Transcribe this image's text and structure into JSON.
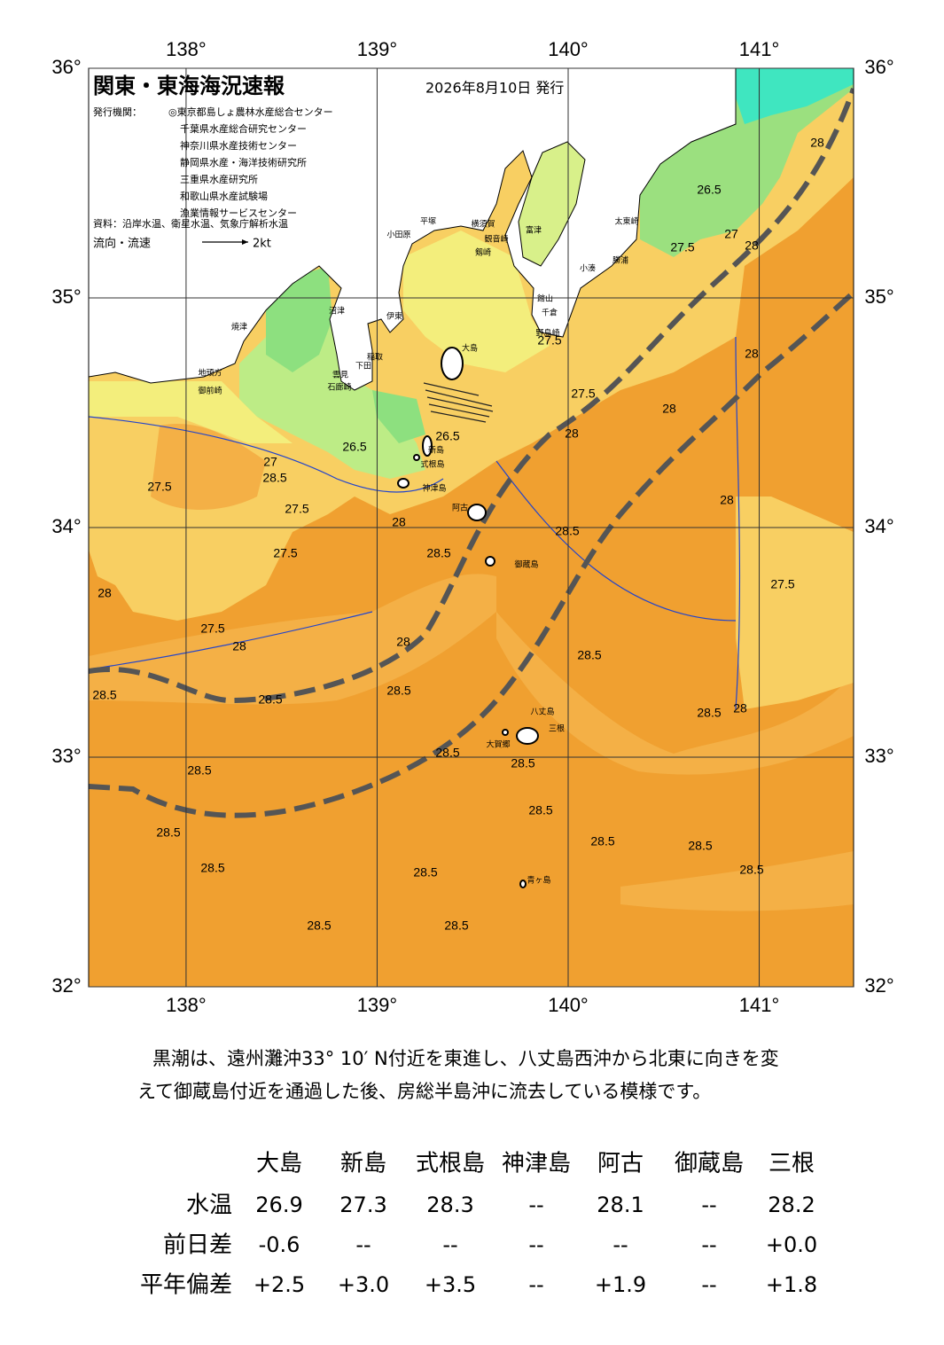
{
  "header": {
    "title": "関東・東海海況速報",
    "issue_date": "2026年8月10日 発行",
    "publisher_label": "発行機関：",
    "publishers": [
      "◎東京都島しょ農林水産総合センター",
      "千葉県水産総合研究センター",
      "神奈川県水産技術センター",
      "静岡県水産・海洋技術研究所",
      "三重県水産研究所",
      "和歌山県水産試験場",
      "漁業情報サービスセンター"
    ],
    "source": "資料：沿岸水温、衛星水温、気象庁解析水温",
    "flow_legend": "流向・流速",
    "flow_scale": "2kt"
  },
  "map": {
    "lonlim": [
      137.49,
      141.494
    ],
    "latlim": [
      32,
      36
    ],
    "lon_ticks": [
      {
        "value": 138,
        "label": "138°"
      },
      {
        "value": 139,
        "label": "139°"
      },
      {
        "value": 140,
        "label": "140°"
      },
      {
        "value": 141,
        "label": "141°"
      }
    ],
    "lat_ticks": [
      {
        "value": 32,
        "label": "32°"
      },
      {
        "value": 33,
        "label": "33°"
      },
      {
        "value": 34,
        "label": "34°"
      },
      {
        "value": 35,
        "label": "35°"
      },
      {
        "value": 36,
        "label": "36°"
      }
    ],
    "contour_labels": [
      27.5,
      28.5,
      27,
      27.5,
      27.5,
      28,
      27.5,
      28,
      28.5,
      28,
      28.5,
      28.5,
      28.5,
      28,
      27.5,
      27.5,
      28,
      28,
      27.5,
      28.5,
      28.5,
      28,
      28.5,
      28.5,
      28.5,
      28.5,
      28.5,
      28.5,
      28.5,
      28.5,
      28.5,
      28.5,
      28.5,
      28.5,
      28.5,
      28,
      28,
      28,
      27.5,
      26.5,
      26.5,
      26.5,
      27,
      28
    ],
    "place_names": [
      "大島",
      "新島",
      "式根島",
      "神津島",
      "阿古",
      "御蔵島",
      "八丈島",
      "三根",
      "大賀郷",
      "青ヶ島",
      "太東崎",
      "小湊",
      "勝浦",
      "館山",
      "千倉",
      "野島崎",
      "富津",
      "横須賀",
      "観音崎",
      "剱崎",
      "平塚",
      "小田原",
      "伊東",
      "稲取",
      "下田",
      "雲見",
      "石廊崎",
      "沼津",
      "焼津",
      "地頭方",
      "御前崎"
    ]
  },
  "description": [
    "黒潮は、遠州灘沖33° 10′ N付近を東進し、八丈島西沖から北東に向きを変",
    "えて御蔵島付近を通過した後、房総半島沖に流去している模様です。"
  ],
  "table": {
    "columns": [
      "大島",
      "新島",
      "式根島",
      "神津島",
      "阿古",
      "御蔵島",
      "三根"
    ],
    "rows": [
      {
        "label": "水温",
        "cells": [
          "26.9",
          "27.3",
          "28.3",
          "--",
          "28.1",
          "--",
          "28.2"
        ]
      },
      {
        "label": "前日差",
        "cells": [
          "-0.6",
          "--",
          "--",
          "--",
          "--",
          "--",
          "+0.0"
        ]
      },
      {
        "label": "平年偏差",
        "cells": [
          "+2.5",
          "+3.0",
          "+3.5",
          "--",
          "+1.9",
          "--",
          "+1.8"
        ]
      }
    ]
  }
}
